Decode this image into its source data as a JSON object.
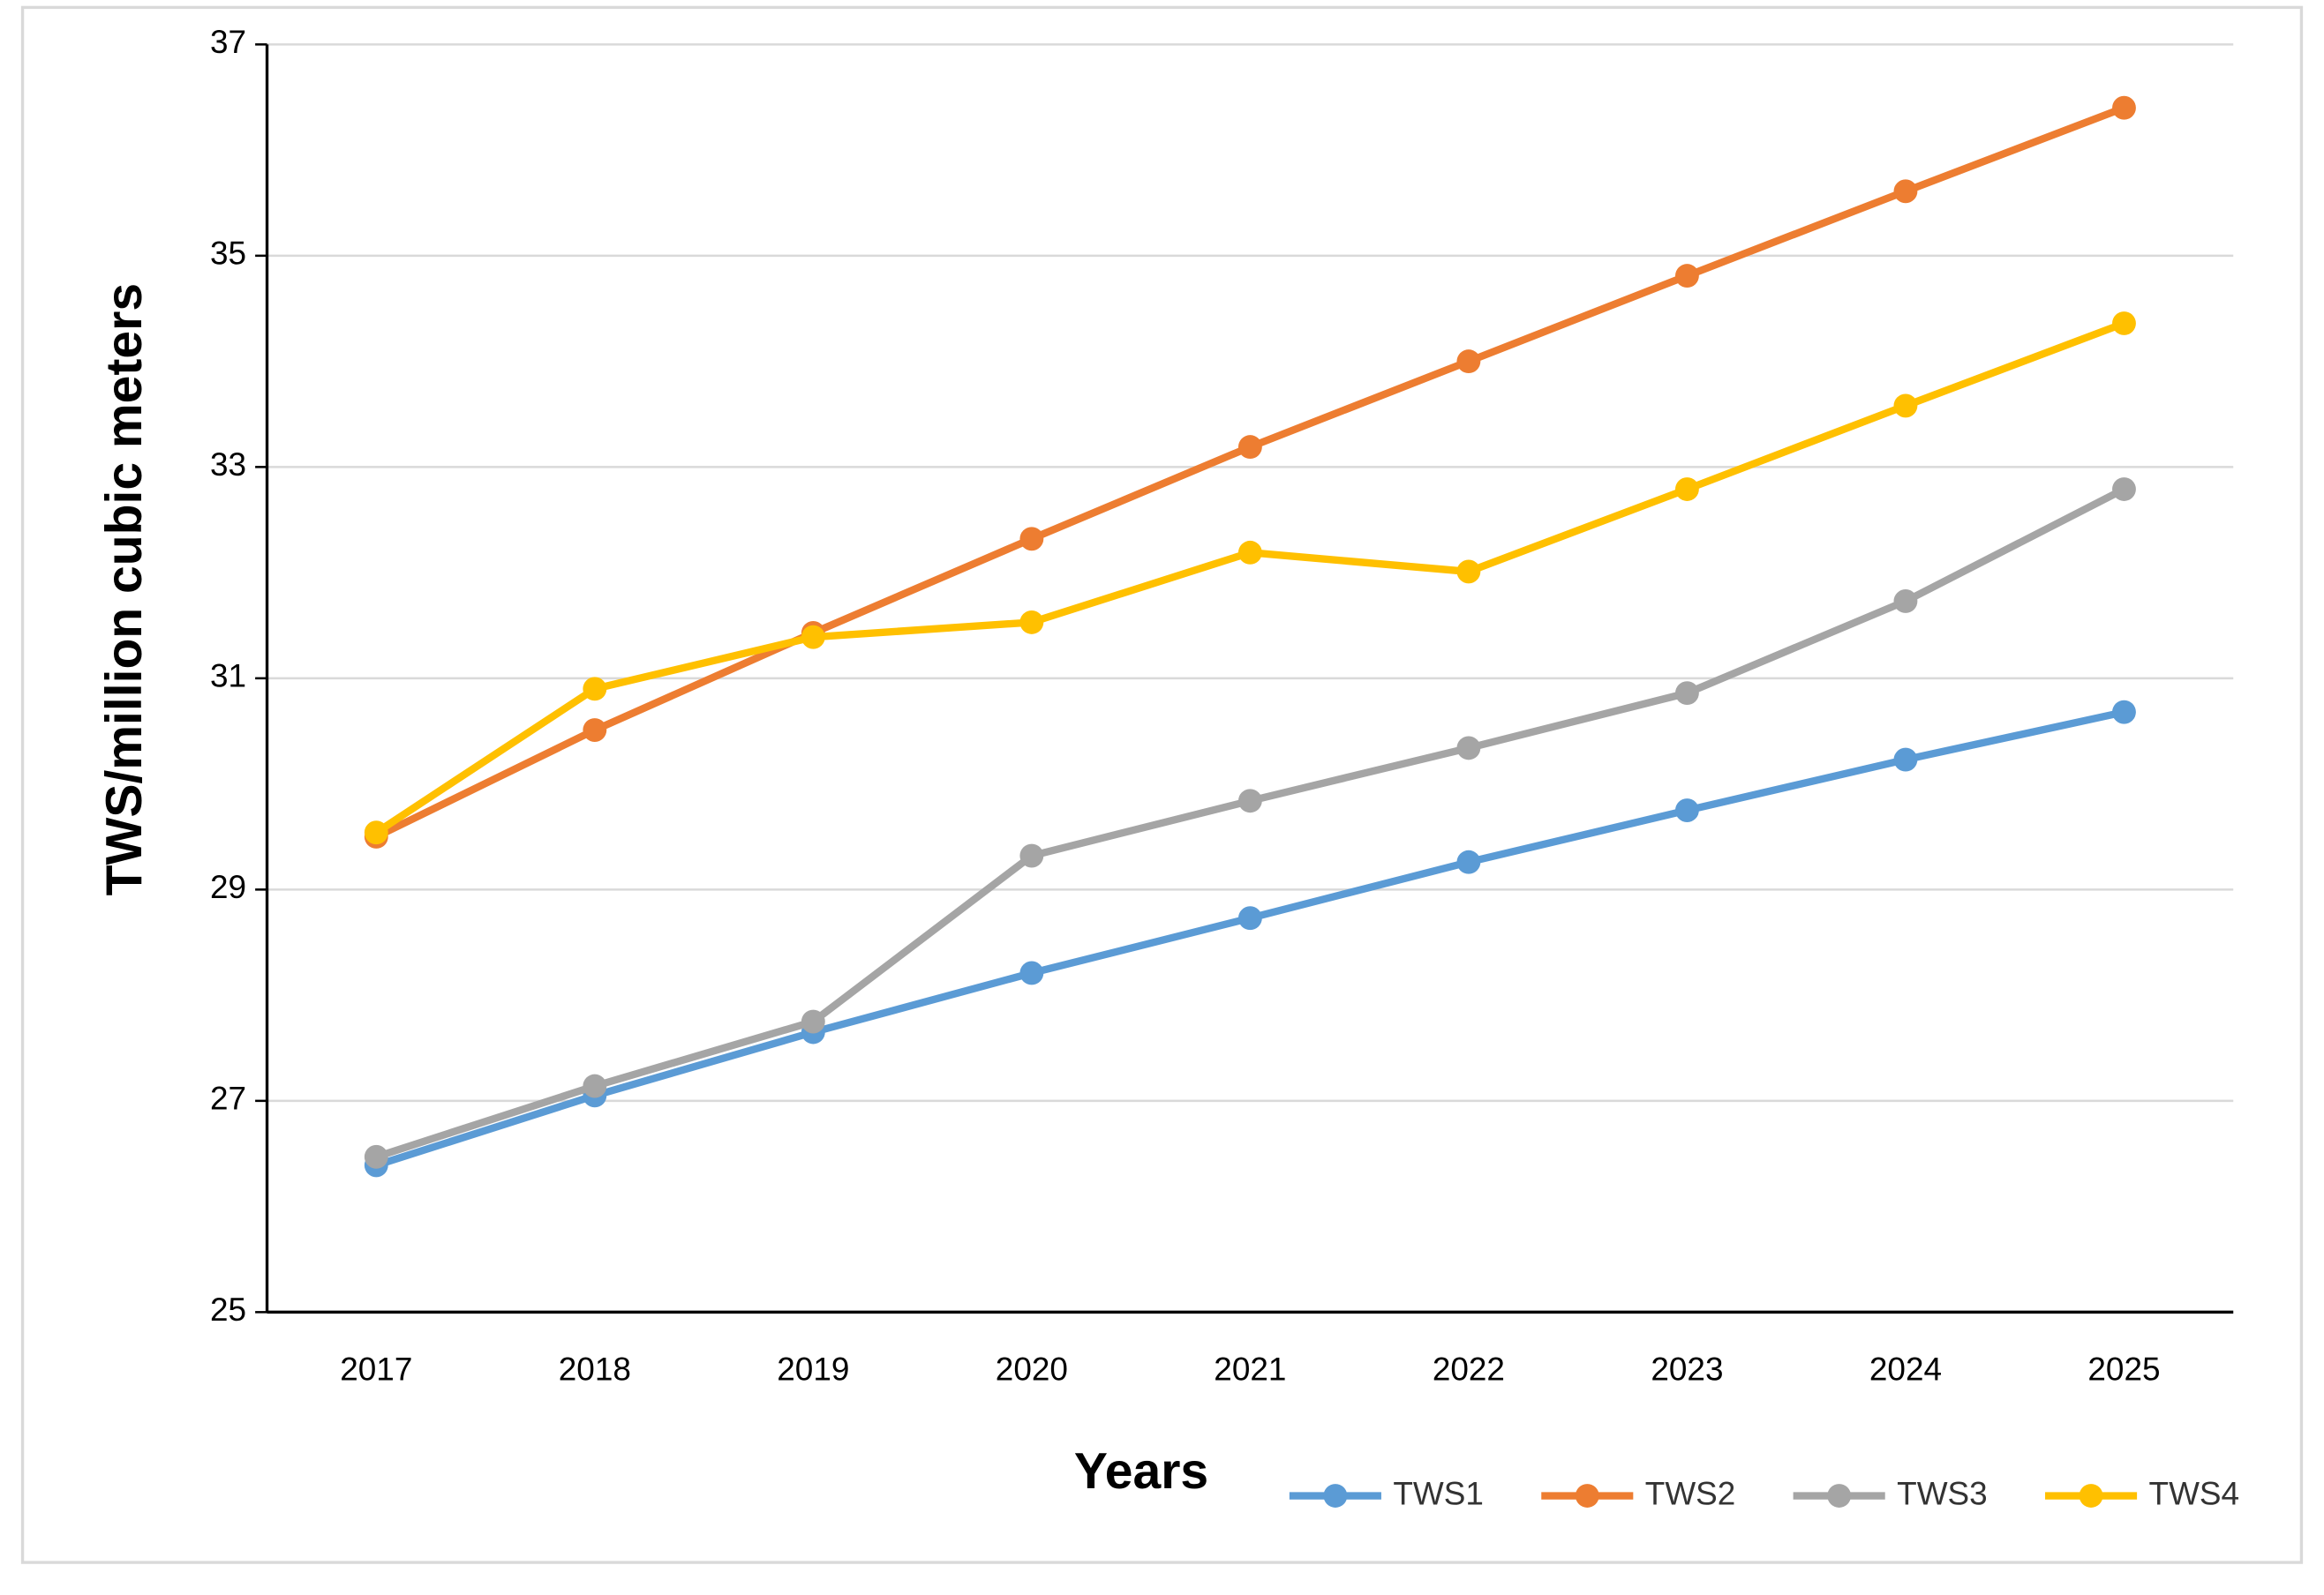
{
  "chart_data": {
    "type": "line",
    "x_label": "Years",
    "y_label": "TWS/million cubic meters",
    "categories": [
      "2017",
      "2018",
      "2019",
      "2020",
      "2021",
      "2022",
      "2023",
      "2024",
      "2025"
    ],
    "series": [
      {
        "name": "TWS1",
        "color": "#5b9bd5",
        "values": [
          26.39,
          27.05,
          27.65,
          28.21,
          28.73,
          29.26,
          29.75,
          30.23,
          30.68
        ]
      },
      {
        "name": "TWS2",
        "color": "#ed7d31",
        "values": [
          29.5,
          30.51,
          31.43,
          32.32,
          33.19,
          34.0,
          34.81,
          35.61,
          36.4
        ]
      },
      {
        "name": "TWS3",
        "color": "#a5a5a5",
        "values": [
          26.47,
          27.14,
          27.75,
          29.32,
          29.84,
          30.34,
          30.86,
          31.73,
          32.79
        ]
      },
      {
        "name": "TWS4",
        "color": "#ffc000",
        "values": [
          29.54,
          30.9,
          31.39,
          31.53,
          32.19,
          32.01,
          32.79,
          33.58,
          34.36
        ]
      }
    ],
    "ylim": [
      25,
      37
    ],
    "yticks": [
      25,
      27,
      29,
      31,
      33,
      35,
      37
    ],
    "grid": true,
    "legend": "bottom-right"
  }
}
